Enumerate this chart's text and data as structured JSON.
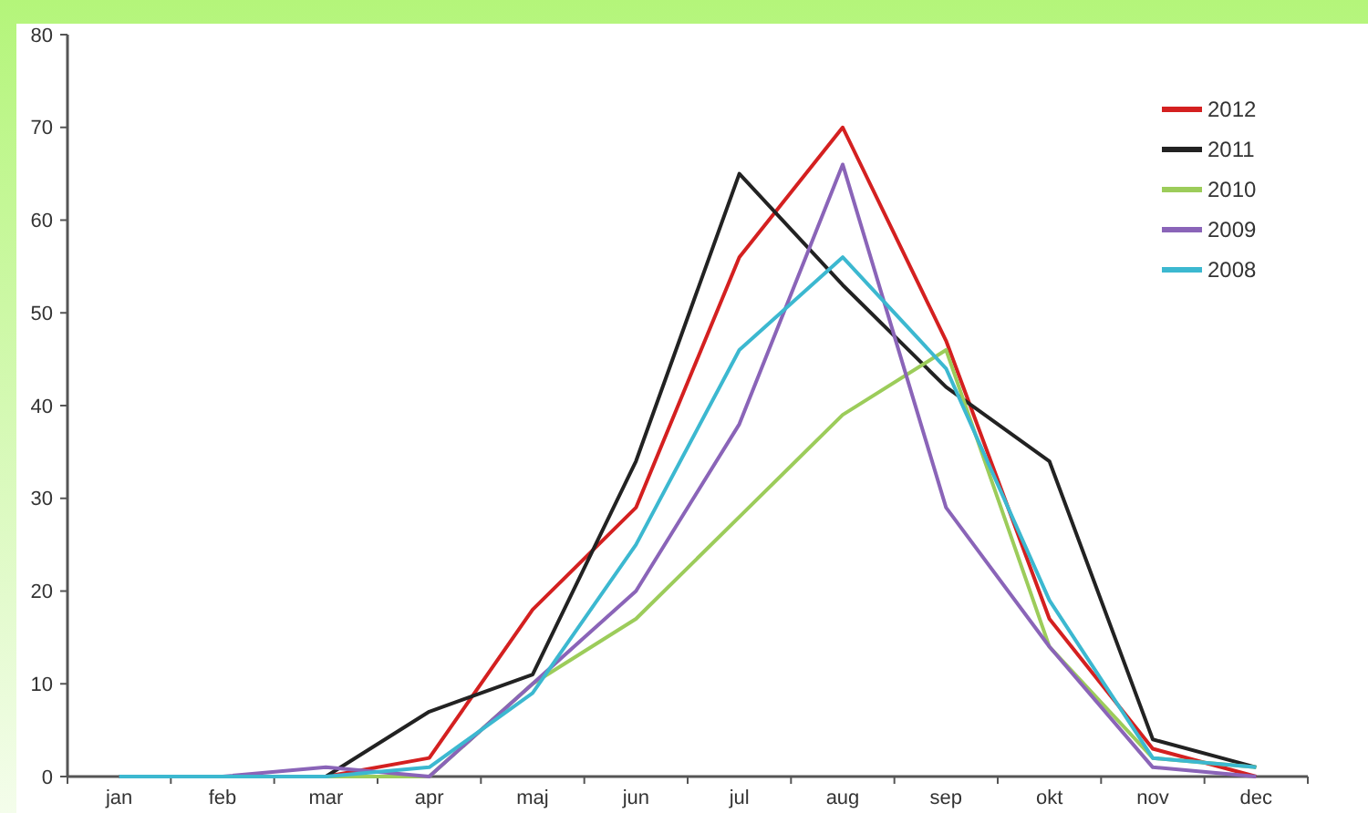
{
  "chart_data": {
    "type": "line",
    "categories": [
      "jan",
      "feb",
      "mar",
      "apr",
      "maj",
      "jun",
      "jul",
      "aug",
      "sep",
      "okt",
      "nov",
      "dec"
    ],
    "series": [
      {
        "name": "2012",
        "color": "#d42020",
        "values": [
          0,
          0,
          0,
          2,
          18,
          29,
          56,
          70,
          47,
          17,
          3,
          0
        ]
      },
      {
        "name": "2011",
        "color": "#222222",
        "values": [
          0,
          0,
          0,
          7,
          11,
          34,
          65,
          53,
          42,
          34,
          4,
          1
        ]
      },
      {
        "name": "2010",
        "color": "#9ccc5a",
        "values": [
          0,
          0,
          0,
          0,
          10,
          17,
          28,
          39,
          46,
          14,
          2,
          1
        ]
      },
      {
        "name": "2009",
        "color": "#8a64b8",
        "values": [
          0,
          0,
          1,
          0,
          10,
          20,
          38,
          66,
          29,
          14,
          1,
          0
        ]
      },
      {
        "name": "2008",
        "color": "#3cb8d0",
        "values": [
          0,
          0,
          0,
          1,
          9,
          25,
          46,
          56,
          44,
          19,
          2,
          1
        ]
      }
    ],
    "ylim": [
      0,
      80
    ],
    "yticks": [
      0,
      10,
      20,
      30,
      40,
      50,
      60,
      70,
      80
    ],
    "grid": false,
    "legend": "top right",
    "marker": "none",
    "line_style": "solid"
  }
}
